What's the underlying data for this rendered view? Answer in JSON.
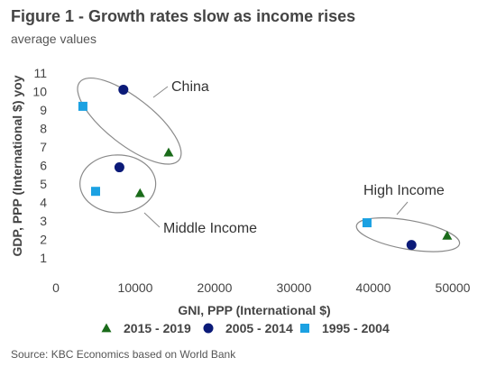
{
  "title": "Figure 1 - Growth rates slow as income rises",
  "subtitle": "average values",
  "source": "Source: KBC Economics based on World Bank",
  "chart_data": {
    "type": "scatter",
    "title": "Figure 1 - Growth rates slow as income rises",
    "subtitle": "average values",
    "xlabel": "GNI, PPP (International $)",
    "ylabel": "GDP, PPP (International $) yoy",
    "xlim": [
      0,
      50000
    ],
    "ylim": [
      1,
      11
    ],
    "x_ticks": [
      "0",
      "10000",
      "20000",
      "30000",
      "40000",
      "50000"
    ],
    "y_ticks": [
      "1",
      "2",
      "3",
      "4",
      "5",
      "6",
      "7",
      "8",
      "9",
      "10",
      "11"
    ],
    "grid": false,
    "legend_position": "bottom",
    "series": [
      {
        "name": "2015 - 2019",
        "marker": "triangle",
        "color": "#1a6b1a",
        "points": [
          {
            "x": 14200,
            "y": 6.7
          },
          {
            "x": 10600,
            "y": 4.5
          },
          {
            "x": 49300,
            "y": 2.2
          }
        ]
      },
      {
        "name": "2005 - 2014",
        "marker": "circle",
        "color": "#0b1a78",
        "points": [
          {
            "x": 8500,
            "y": 10.1
          },
          {
            "x": 8000,
            "y": 5.9
          },
          {
            "x": 44800,
            "y": 1.7
          }
        ]
      },
      {
        "name": "1995 - 2004",
        "marker": "square",
        "color": "#1ba1e2",
        "points": [
          {
            "x": 3400,
            "y": 9.2
          },
          {
            "x": 5000,
            "y": 4.6
          },
          {
            "x": 39200,
            "y": 2.9
          }
        ]
      }
    ],
    "annotations": [
      "China",
      "Middle Income",
      "High Income"
    ]
  }
}
